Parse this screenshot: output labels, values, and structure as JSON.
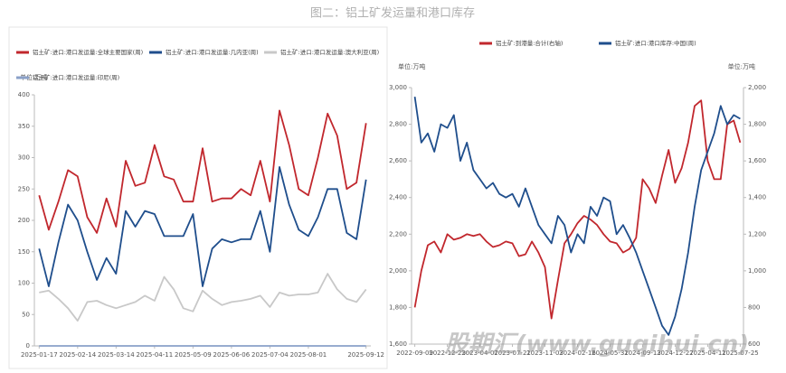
{
  "title": "图二：铝土矿发运量和港口库存",
  "watermark": "股期汇(www.guqihui.cn)",
  "chart_data": [
    {
      "type": "line",
      "unit": "单位:万吨",
      "categories": [
        "2025-01-17",
        null,
        null,
        null,
        "2025-02-14",
        null,
        null,
        null,
        "2025-03-14",
        null,
        null,
        null,
        "2025-04-11",
        null,
        null,
        null,
        "2025-05-09",
        null,
        null,
        null,
        "2025-06-06",
        null,
        null,
        null,
        "2025-07-04",
        null,
        null,
        null,
        "2025-08-01",
        null,
        null,
        null,
        null,
        null,
        "2025-09-12"
      ],
      "ylim": [
        0,
        400
      ],
      "yticks": [
        0,
        50,
        100,
        150,
        200,
        250,
        300,
        350,
        400
      ],
      "series": [
        {
          "name": "铝土矿:进口:港口发运量:全球主要国家(周)",
          "color": "#c1272d",
          "values": [
            240,
            185,
            230,
            280,
            270,
            205,
            180,
            235,
            190,
            295,
            255,
            260,
            320,
            270,
            265,
            230,
            230,
            315,
            230,
            235,
            235,
            250,
            240,
            295,
            230,
            375,
            320,
            250,
            240,
            300,
            370,
            335,
            250,
            260,
            355
          ]
        },
        {
          "name": "铝土矿:进口:港口发运量:几内亚(周)",
          "color": "#1f4e8c",
          "values": [
            155,
            95,
            165,
            225,
            200,
            150,
            105,
            140,
            115,
            215,
            190,
            215,
            210,
            175,
            175,
            175,
            210,
            95,
            155,
            170,
            165,
            170,
            170,
            215,
            150,
            285,
            225,
            185,
            175,
            205,
            250,
            250,
            180,
            170,
            265
          ]
        },
        {
          "name": "铝土矿:进口:港口发运量:澳大利亚(周)",
          "color": "#c8c8c8",
          "values": [
            85,
            88,
            75,
            60,
            40,
            70,
            72,
            65,
            60,
            65,
            70,
            80,
            72,
            110,
            90,
            60,
            55,
            88,
            75,
            65,
            70,
            72,
            75,
            80,
            62,
            85,
            80,
            82,
            82,
            85,
            115,
            90,
            75,
            70,
            90
          ]
        },
        {
          "name": "铝土矿:进口:港口发运量:印尼(周)",
          "color": "#8aa0c8",
          "values": [
            0,
            0,
            0,
            0,
            0,
            0,
            0,
            0,
            0,
            0,
            0,
            0,
            0,
            0,
            0,
            0,
            0,
            0,
            0,
            0,
            0,
            0,
            0,
            0,
            0,
            0,
            0,
            0,
            0,
            0,
            0,
            0,
            0,
            0,
            0
          ]
        }
      ]
    },
    {
      "type": "line",
      "unit": "单位:万吨",
      "unit2": "单位:万吨",
      "categories": [
        "2022-09-09",
        null,
        null,
        null,
        null,
        "2022-12-23",
        null,
        null,
        null,
        null,
        "2023-04-07",
        null,
        null,
        null,
        null,
        "2023-07-21",
        null,
        null,
        null,
        null,
        "2023-11-03",
        null,
        null,
        null,
        null,
        "2024-02-16",
        null,
        null,
        null,
        null,
        "2024-05-31",
        null,
        null,
        null,
        null,
        "2024-09-13",
        null,
        null,
        null,
        null,
        "2024-12-27",
        null,
        null,
        null,
        null,
        "2025-04-11",
        null,
        null,
        null,
        null,
        "2025-07-25"
      ],
      "ylim": [
        1600,
        3000
      ],
      "yticks": [
        {
          "value": 1600,
          "label": "1,600"
        },
        {
          "value": 1800,
          "label": "1,800"
        },
        {
          "value": 2000,
          "label": "2,000"
        },
        {
          "value": 2200,
          "label": "2,200"
        },
        {
          "value": 2400,
          "label": "2,400"
        },
        {
          "value": 2600,
          "label": "2,600"
        },
        {
          "value": 2800,
          "label": "2,800"
        },
        {
          "value": 3000,
          "label": "3,000"
        }
      ],
      "y2lim": [
        600,
        2000
      ],
      "y2ticks": [
        600,
        800,
        {
          "value": 1000,
          "label": "1,000"
        },
        {
          "value": 1200,
          "label": "1,200"
        },
        {
          "value": 1400,
          "label": "1,400"
        },
        {
          "value": 1600,
          "label": "1,600"
        },
        {
          "value": 1800,
          "label": "1,800"
        },
        {
          "value": 2000,
          "label": "2,000"
        }
      ],
      "series": [
        {
          "name": "铝土矿:到港量:合计(右轴)",
          "color": "#c1272d",
          "axis": "y2",
          "values": [
            800,
            1000,
            1140,
            1160,
            1100,
            1200,
            1170,
            1180,
            1200,
            1190,
            1200,
            1160,
            1130,
            1140,
            1160,
            1150,
            1080,
            1090,
            1160,
            1100,
            1020,
            740,
            950,
            1150,
            1200,
            1260,
            1300,
            1280,
            1250,
            1200,
            1160,
            1150,
            1100,
            1120,
            1180,
            1500,
            1450,
            1370,
            1520,
            1660,
            1480,
            1560,
            1700,
            1900,
            1930,
            1600,
            1500,
            1500,
            1800,
            1820,
            1700
          ]
        },
        {
          "name": "铝土矿:进口:港口库存:中国(周)",
          "color": "#1f4e8c",
          "values": [
            2950,
            2700,
            2750,
            2650,
            2800,
            2780,
            2850,
            2600,
            2700,
            2550,
            2500,
            2450,
            2480,
            2420,
            2400,
            2420,
            2350,
            2450,
            2350,
            2250,
            2200,
            2150,
            2300,
            2250,
            2100,
            2200,
            2150,
            2350,
            2300,
            2400,
            2380,
            2200,
            2250,
            2180,
            2100,
            2000,
            1900,
            1800,
            1700,
            1650,
            1750,
            1900,
            2100,
            2350,
            2550,
            2650,
            2750,
            2900,
            2800,
            2850,
            2830
          ]
        }
      ]
    }
  ]
}
